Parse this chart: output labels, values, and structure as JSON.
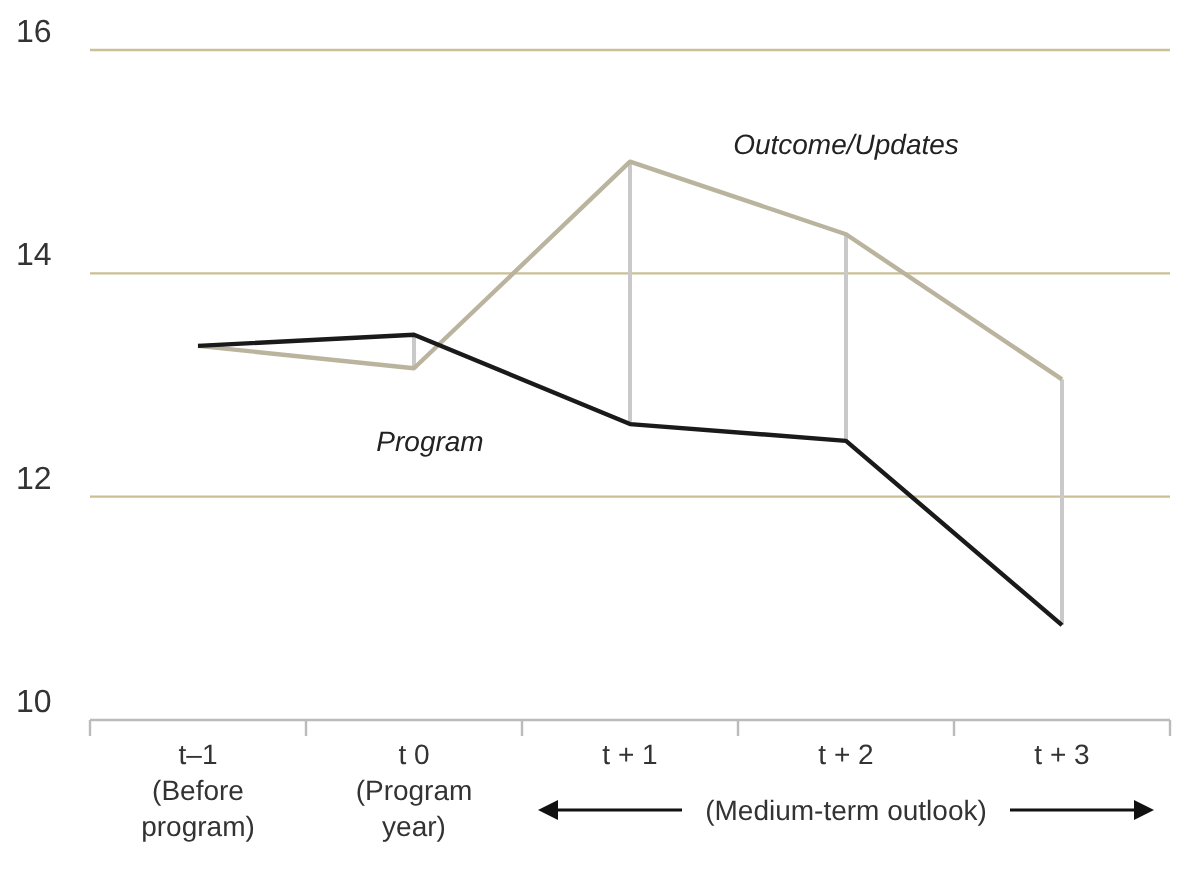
{
  "chart_data": {
    "type": "line",
    "categories": [
      "t–1\n(Before\nprogram)",
      "t 0\n(Program\nyear)",
      "t + 1",
      "t + 2",
      "t + 3"
    ],
    "series": [
      {
        "name": "Program",
        "color": "#1a1a1a",
        "values": [
          13.35,
          13.45,
          12.65,
          12.5,
          10.85
        ]
      },
      {
        "name": "Outcome/Updates",
        "color": "#bab39d",
        "values": [
          13.35,
          13.15,
          15.0,
          14.35,
          13.05
        ]
      }
    ],
    "ylim": [
      10,
      16
    ],
    "yticks": [
      10,
      12,
      14,
      16
    ],
    "grid": "y",
    "legend": false,
    "line_style": "solid",
    "annotations": [
      "(Medium-term outlook)"
    ]
  }
}
